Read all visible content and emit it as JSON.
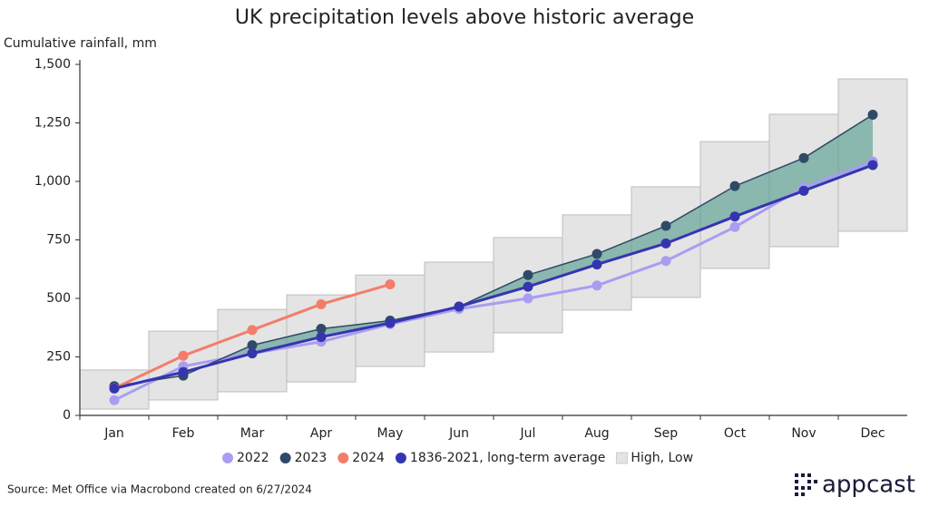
{
  "chart_data": {
    "type": "line",
    "title": "UK precipitation levels above historic average",
    "y_label": "Cumulative rainfall, mm",
    "source": "Source: Met Office via Macrobond created on 6/27/2024",
    "logo": "appcast",
    "categories": [
      "Jan",
      "Feb",
      "Mar",
      "Apr",
      "May",
      "Jun",
      "Jul",
      "Aug",
      "Sep",
      "Oct",
      "Nov",
      "Dec"
    ],
    "ylim": [
      0,
      1500
    ],
    "yticks": [
      0,
      250,
      500,
      750,
      {
        "value": 1000,
        "label": "1,000"
      },
      {
        "value": 1250,
        "label": "1,250"
      },
      {
        "value": 1500,
        "label": "1,500"
      }
    ],
    "range": {
      "name": "High, Low",
      "color": "#e4e4e4",
      "high": [
        194,
        360,
        453,
        515,
        600,
        655,
        760,
        857,
        977,
        1170,
        1287,
        1438
      ],
      "low": [
        27,
        66,
        101,
        143,
        209,
        271,
        353,
        450,
        504,
        628,
        721,
        787
      ]
    },
    "fill_color": "#4f9a8a",
    "series": [
      {
        "name": "2022",
        "color": "#a99df2",
        "values": [
          65,
          210,
          265,
          315,
          390,
          455,
          500,
          555,
          660,
          805,
          975,
          1085
        ]
      },
      {
        "name": "2023",
        "color": "#2f4a66",
        "values": [
          125,
          170,
          300,
          370,
          405,
          465,
          600,
          690,
          810,
          980,
          1100,
          1285
        ]
      },
      {
        "name": "2024",
        "color": "#f47c6a",
        "values": [
          116,
          255,
          365,
          475,
          560,
          null,
          null,
          null,
          null,
          null,
          null,
          null
        ]
      },
      {
        "name": "1836-2021, long-term average",
        "color": "#3535b0",
        "values": [
          115,
          185,
          265,
          335,
          395,
          465,
          550,
          645,
          735,
          850,
          960,
          1070
        ]
      }
    ]
  }
}
